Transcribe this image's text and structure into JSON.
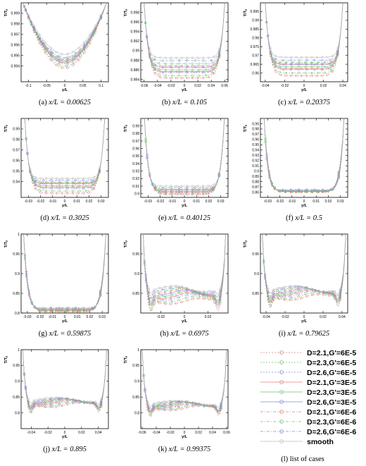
{
  "figure": {
    "case_colors": [
      "#e07b7b",
      "#6cc46c",
      "#7f86e0",
      "#e07b7b",
      "#6cc46c",
      "#7f86e0",
      "#e07b7b",
      "#6cc46c",
      "#7f86e0",
      "#bbbbbb"
    ],
    "legend_caption": "(l) list of cases"
  },
  "chart_data": [
    {
      "type": "line",
      "caption_prefix": "(a)",
      "caption_value": "x/L = 0.00625",
      "xlabel": "y/L",
      "ylabel": "T/Tₚ",
      "xlim": [
        -0.12,
        0.12
      ],
      "ylim": [
        0.9925,
        1.0
      ],
      "x_ticks": [
        "-0.1",
        "-0.05",
        "0",
        "0.05",
        "0.1"
      ],
      "x_tick_values": [
        -0.1,
        -0.05,
        0,
        0.05,
        0.1
      ],
      "y_ticks": [
        "0.999",
        "0.998",
        "0.997",
        "0.996",
        "0.995",
        "0.994"
      ],
      "y_tick_values": [
        0.999,
        0.998,
        0.997,
        0.996,
        0.995,
        0.994
      ],
      "shape": "valley",
      "half_width": 0.115,
      "min_values": [
        0.9938,
        0.994,
        0.9942,
        0.9943,
        0.9944,
        0.9945,
        0.9946,
        0.9947,
        0.9948,
        0.9951
      ],
      "wall_value": 1.0
    },
    {
      "type": "line",
      "caption_prefix": "(b)",
      "caption_value": "x/L = 0.105",
      "xlabel": "y/L",
      "ylabel": "T/Tₚ",
      "xlim": [
        -0.065,
        0.065
      ],
      "ylim": [
        0.9835,
        1.0
      ],
      "x_ticks": [
        "-0.06",
        "-0.04",
        "-0.02",
        "0",
        "0.02",
        "0.04",
        "0.06"
      ],
      "x_tick_values": [
        -0.06,
        -0.04,
        -0.02,
        0,
        0.02,
        0.04,
        0.06
      ],
      "y_ticks": [
        "0.998",
        "0.996",
        "0.994",
        "0.992",
        "0.99",
        "0.988",
        "0.986",
        "0.984"
      ],
      "y_tick_values": [
        0.998,
        0.996,
        0.994,
        0.992,
        0.99,
        0.988,
        0.986,
        0.984
      ],
      "shape": "plateau",
      "half_width": 0.06,
      "min_values": [
        0.9843,
        0.9848,
        0.9853,
        0.9856,
        0.986,
        0.9864,
        0.9868,
        0.9873,
        0.9878,
        0.9885
      ],
      "wall_value": 1.0
    },
    {
      "type": "line",
      "caption_prefix": "(c)",
      "caption_value": "x/L = 0.20375",
      "xlabel": "y/L",
      "ylabel": "T/Tₚ",
      "xlim": [
        -0.045,
        0.045
      ],
      "ylim": [
        0.955,
        1.0
      ],
      "x_ticks": [
        "-0.04",
        "-0.02",
        "0",
        "0.02",
        "0.04"
      ],
      "x_tick_values": [
        -0.04,
        -0.02,
        0,
        0.02,
        0.04
      ],
      "y_ticks": [
        "0.995",
        "0.99",
        "0.985",
        "0.98",
        "0.975",
        "0.97",
        "0.965",
        "0.96"
      ],
      "y_tick_values": [
        0.995,
        0.99,
        0.985,
        0.98,
        0.975,
        0.97,
        0.965,
        0.96
      ],
      "shape": "plateau",
      "half_width": 0.04,
      "min_values": [
        0.9585,
        0.96,
        0.9615,
        0.9625,
        0.9635,
        0.9645,
        0.9652,
        0.966,
        0.967,
        0.969
      ],
      "wall_value": 1.0
    },
    {
      "type": "line",
      "caption_prefix": "(d)",
      "caption_value": "x/L = 0.3025",
      "xlabel": "y/L",
      "ylabel": "T/Tₚ",
      "xlim": [
        -0.036,
        0.036
      ],
      "ylim": [
        0.925,
        1.0
      ],
      "x_ticks": [
        "-0.03",
        "-0.02",
        "-0.01",
        "0",
        "0.01",
        "0.02",
        "0.03"
      ],
      "x_tick_values": [
        -0.03,
        -0.02,
        -0.01,
        0,
        0.01,
        0.02,
        0.03
      ],
      "y_ticks": [
        "0.99",
        "0.98",
        "0.97",
        "0.96",
        "0.95",
        "0.94"
      ],
      "y_tick_values": [
        0.99,
        0.98,
        0.97,
        0.96,
        0.95,
        0.94
      ],
      "shape": "plateau",
      "half_width": 0.033,
      "min_values": [
        0.929,
        0.931,
        0.933,
        0.9345,
        0.936,
        0.9375,
        0.9385,
        0.9395,
        0.9405,
        0.943
      ],
      "wall_value": 1.0
    },
    {
      "type": "line",
      "caption_prefix": "(e)",
      "caption_value": "x/L = 0.40125",
      "xlabel": "y/L",
      "ylabel": "T/Tₚ",
      "xlim": [
        -0.036,
        0.036
      ],
      "ylim": [
        0.895,
        1.0
      ],
      "x_ticks": [
        "-0.03",
        "-0.02",
        "-0.01",
        "0",
        "0.01",
        "0.02",
        "0.03"
      ],
      "x_tick_values": [
        -0.03,
        -0.02,
        -0.01,
        0,
        0.01,
        0.02,
        0.03
      ],
      "y_ticks": [
        "0.99",
        "0.98",
        "0.97",
        "0.96",
        "0.95",
        "0.94",
        "0.93",
        "0.92",
        "0.91",
        "0.9"
      ],
      "y_tick_values": [
        0.99,
        0.98,
        0.97,
        0.96,
        0.95,
        0.94,
        0.93,
        0.92,
        0.91,
        0.9
      ],
      "shape": "plateau",
      "half_width": 0.033,
      "min_values": [
        0.899,
        0.9,
        0.901,
        0.902,
        0.903,
        0.904,
        0.905,
        0.906,
        0.907,
        0.91
      ],
      "wall_value": 1.0
    },
    {
      "type": "line",
      "caption_prefix": "(f)",
      "caption_value": "x/L = 0.5",
      "xlabel": "y/L",
      "ylabel": "T/Tₚ",
      "xlim": [
        -0.036,
        0.036
      ],
      "ylim": [
        0.85,
        1.0
      ],
      "x_ticks": [
        "-0.03",
        "-0.02",
        "-0.01",
        "0",
        "0.01",
        "0.02",
        "0.03"
      ],
      "x_tick_values": [
        -0.03,
        -0.02,
        -0.01,
        0,
        0.01,
        0.02,
        0.03
      ],
      "y_ticks": [
        "0.99",
        "0.98",
        "0.97",
        "0.96",
        "0.95",
        "0.94",
        "0.93",
        "0.92",
        "0.91",
        "0.9",
        "0.89",
        "0.88",
        "0.87",
        "0.86"
      ],
      "y_tick_values": [
        0.99,
        0.98,
        0.97,
        0.96,
        0.95,
        0.94,
        0.93,
        0.92,
        0.91,
        0.9,
        0.89,
        0.88,
        0.87,
        0.86
      ],
      "shape": "plateau",
      "half_width": 0.033,
      "min_values": [
        0.86,
        0.8605,
        0.861,
        0.8612,
        0.8615,
        0.8618,
        0.862,
        0.8625,
        0.863,
        0.864
      ],
      "wall_value": 1.0
    },
    {
      "type": "line",
      "caption_prefix": "(g)",
      "caption_value": "x/L = 0.59875",
      "xlabel": "y/L",
      "ylabel": "T/Tₚ",
      "xlim": [
        -0.035,
        0.035
      ],
      "ylim": [
        0.8,
        1.0
      ],
      "x_ticks": [
        "-0.03",
        "-0.02",
        "-0.01",
        "0",
        "0.01",
        "0.02",
        "0.03"
      ],
      "x_tick_values": [
        -0.03,
        -0.02,
        -0.01,
        0,
        0.01,
        0.02,
        0.03
      ],
      "y_ticks": [
        "1",
        "0.95",
        "0.9",
        "0.85",
        "0.8"
      ],
      "y_tick_values": [
        1,
        0.95,
        0.9,
        0.85,
        0.8
      ],
      "shape": "plateau",
      "half_width": 0.033,
      "min_values": [
        0.803,
        0.804,
        0.805,
        0.806,
        0.807,
        0.808,
        0.809,
        0.81,
        0.811,
        0.812
      ],
      "wall_value": 1.0
    },
    {
      "type": "line",
      "caption_prefix": "(h)",
      "caption_value": "x/L = 0.6975",
      "xlabel": "y/L",
      "ylabel": "T/Tₚ",
      "xlim": [
        -0.037,
        0.037
      ],
      "ylim": [
        0.8,
        1.0
      ],
      "x_ticks": [
        "-0.02",
        "0",
        "0.02"
      ],
      "x_tick_values": [
        -0.02,
        0,
        0.02
      ],
      "y_ticks": [
        "0.95",
        "0.9",
        "0.85"
      ],
      "y_tick_values": [
        0.95,
        0.9,
        0.85
      ],
      "shape": "dip",
      "half_width": 0.035,
      "min_values": [
        0.83,
        0.834,
        0.838,
        0.841,
        0.844,
        0.847,
        0.85,
        0.853,
        0.856,
        0.86
      ],
      "wall_value": 1.0
    },
    {
      "type": "line",
      "caption_prefix": "(i)",
      "caption_value": "x/L = 0.79625",
      "xlabel": "y/L",
      "ylabel": "T/Tₚ",
      "xlim": [
        -0.046,
        0.046
      ],
      "ylim": [
        0.8,
        1.0
      ],
      "x_ticks": [
        "-0.04",
        "-0.02",
        "0",
        "0.02",
        "0.04"
      ],
      "x_tick_values": [
        -0.04,
        -0.02,
        0,
        0.02,
        0.04
      ],
      "y_ticks": [
        "0.95",
        "0.9",
        "0.85"
      ],
      "y_tick_values": [
        0.95,
        0.9,
        0.85
      ],
      "shape": "dip",
      "half_width": 0.044,
      "min_values": [
        0.84,
        0.843,
        0.846,
        0.848,
        0.85,
        0.852,
        0.854,
        0.856,
        0.858,
        0.86
      ],
      "wall_value": 1.0
    },
    {
      "type": "line",
      "caption_prefix": "(j)",
      "caption_value": "x/L = 0.895",
      "xlabel": "y/L",
      "ylabel": "T/Tₚ",
      "xlim": [
        -0.052,
        0.052
      ],
      "ylim": [
        0.75,
        1.0
      ],
      "x_ticks": [
        "-0.04",
        "-0.02",
        "0",
        "0.02",
        "0.04"
      ],
      "x_tick_values": [
        -0.04,
        -0.02,
        0,
        0.02,
        0.04
      ],
      "y_ticks": [
        "1",
        "0.95",
        "0.9",
        "0.85",
        "0.8"
      ],
      "y_tick_values": [
        1,
        0.95,
        0.9,
        0.85,
        0.8
      ],
      "shape": "dip",
      "half_width": 0.05,
      "min_values": [
        0.825,
        0.827,
        0.829,
        0.831,
        0.833,
        0.834,
        0.835,
        0.836,
        0.837,
        0.84
      ],
      "wall_value": 1.0
    },
    {
      "type": "line",
      "caption_prefix": "(k)",
      "caption_value": "x/L = 0.99375",
      "xlabel": "y/L",
      "ylabel": "T/Tₚ",
      "xlim": [
        -0.062,
        0.062
      ],
      "ylim": [
        0.75,
        1.0
      ],
      "x_ticks": [
        "-0.06",
        "-0.04",
        "-0.02",
        "0",
        "0.02",
        "0.04",
        "0.06"
      ],
      "x_tick_values": [
        -0.06,
        -0.04,
        -0.02,
        0,
        0.02,
        0.04,
        0.06
      ],
      "y_ticks": [
        "1",
        "0.95",
        "0.9",
        "0.85",
        "0.8"
      ],
      "y_tick_values": [
        1,
        0.95,
        0.9,
        0.85,
        0.8
      ],
      "shape": "dip",
      "half_width": 0.06,
      "min_values": [
        0.815,
        0.817,
        0.819,
        0.821,
        0.823,
        0.824,
        0.825,
        0.826,
        0.827,
        0.83
      ],
      "wall_value": 1.0
    }
  ],
  "legend": {
    "entries": [
      {
        "label": "D=2.1,G'=6E-5",
        "color": "#e07b7b",
        "dash": "2 2"
      },
      {
        "label": "D=2.3,G'=6E-5",
        "color": "#6cc46c",
        "dash": "2 2"
      },
      {
        "label": "D=2.6,G'=6E-5",
        "color": "#7f86e0",
        "dash": "2 2"
      },
      {
        "label": "D=2.1,G'=3E-5",
        "color": "#e07b7b",
        "dash": ""
      },
      {
        "label": "D=2.3,G'=3E-5",
        "color": "#6cc46c",
        "dash": ""
      },
      {
        "label": "D=2.6,G'=3E-5",
        "color": "#7f86e0",
        "dash": ""
      },
      {
        "label": "D=2.1,G'=6E-6",
        "color": "#e07b7b",
        "dash": "4 2 1 2"
      },
      {
        "label": "D=2.3,G'=6E-6",
        "color": "#6cc46c",
        "dash": "4 2 1 2"
      },
      {
        "label": "D=2.6,G'=6E-6",
        "color": "#7f86e0",
        "dash": "4 2 1 2"
      },
      {
        "label": "smooth",
        "color": "#bbbbbb",
        "dash": ""
      }
    ]
  }
}
